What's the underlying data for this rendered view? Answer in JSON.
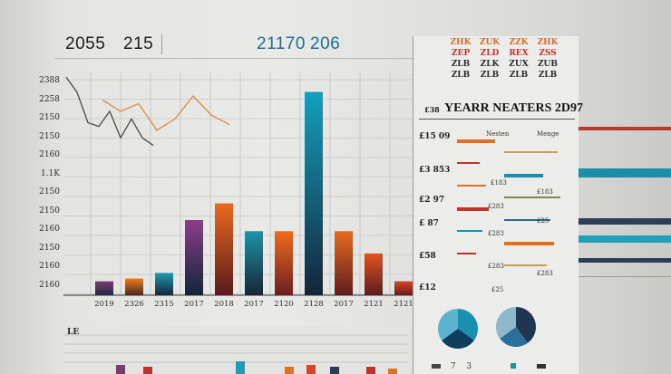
{
  "header": {
    "left_a": "2055",
    "left_b": "215",
    "mid_a": "21170",
    "mid_b": "206"
  },
  "chart_data": {
    "type": "bar",
    "title": "",
    "y_tick_labels": [
      "2388",
      "2258",
      "2150",
      "2150",
      "2160",
      "1.1K",
      "2150",
      "2150",
      "2160",
      "2150",
      "2160",
      "2160"
    ],
    "categories": [
      "2019",
      "2326",
      "2315",
      "2017",
      "2018",
      "2017",
      "2120",
      "2128",
      "2017",
      "2121",
      "2121"
    ],
    "values": [
      5,
      6,
      8,
      27,
      33,
      23,
      23,
      73,
      23,
      15,
      5
    ],
    "bar_colors": [
      [
        "#7a3b72",
        "#1e2b3d"
      ],
      [
        "#f07a1a",
        "#4a2a20"
      ],
      [
        "#1f9bb5",
        "#17263a"
      ],
      [
        "#8a3f8a",
        "#13243a"
      ],
      [
        "#ea6a1e",
        "#5a1a1a"
      ],
      [
        "#1d93a6",
        "#172537"
      ],
      [
        "#f06b1c",
        "#6a1f1f"
      ],
      [
        "#13a0bd",
        "#15253a"
      ],
      [
        "#e66a20",
        "#5e1c1c"
      ],
      [
        "#e2521f",
        "#5a1e1e"
      ],
      [
        "#d4452a",
        "#6a1c1c"
      ]
    ],
    "ylim": [
      0,
      80
    ],
    "line_series": [
      {
        "name": "dark",
        "color": "#4a4a4a",
        "values": [
          96,
          88,
          72,
          70,
          78,
          64,
          74,
          64,
          60
        ]
      },
      {
        "name": "orange",
        "color": "#e0893a",
        "values": [
          84,
          78,
          82,
          68,
          74,
          86,
          76,
          71
        ]
      }
    ]
  },
  "panel": {
    "title": "YEARR NEATERS 2D97",
    "mini_headers": [
      "ZHK",
      "ZUK",
      "ZZK",
      "ZHK"
    ],
    "mini_row2": [
      "ZEP",
      "ZLD",
      "REX",
      "ZSS"
    ],
    "mini_row3": [
      "ZLB",
      "ZLK",
      "ZUX",
      "ZUB"
    ],
    "mini_row4": [
      "ZLB",
      "ZLB",
      "ZLB",
      "ZLB"
    ],
    "left_label_top": "£38",
    "row_labels": [
      "£15 09",
      "£3 853",
      "£2 97",
      "£ 87",
      "£58",
      "£12"
    ],
    "small_labels": [
      "Nesten",
      "Menge",
      "£183",
      "£183",
      "£283",
      "£25",
      "£283",
      "£283",
      "£283",
      "£25"
    ],
    "bar_rows": [
      {
        "label": "",
        "color": "#e07020",
        "value": 0.6
      },
      {
        "label": "",
        "color": "#c8a04c",
        "value": 0.75
      },
      {
        "label": "",
        "color": "#c0332a",
        "value": 0.35
      },
      {
        "label": "",
        "color": "#1b8fa8",
        "value": 0.55
      },
      {
        "label": "",
        "color": "#e07020",
        "value": 0.45
      },
      {
        "label": "",
        "color": "#7a8a4a",
        "value": 0.8
      },
      {
        "label": "",
        "color": "#c0332a",
        "value": 0.5
      },
      {
        "label": "",
        "color": "#2a6a8a",
        "value": 0.65
      },
      {
        "label": "",
        "color": "#1b8fa8",
        "value": 0.4
      },
      {
        "label": "",
        "color": "#e07020",
        "value": 0.7
      },
      {
        "label": "",
        "color": "#c0332a",
        "value": 0.3
      },
      {
        "label": "",
        "color": "#c8a04c",
        "value": 0.6
      }
    ],
    "pie": [
      {
        "name": "pie-a",
        "slices": [
          0.35,
          0.3,
          0.35
        ],
        "colors": [
          "#1b8fb0",
          "#0f3d5e",
          "#5ab4d0"
        ]
      },
      {
        "name": "pie-b",
        "slices": [
          0.4,
          0.25,
          0.35
        ],
        "colors": [
          "#1f3550",
          "#2b6f9a",
          "#8fb8cc"
        ]
      }
    ],
    "footer": [
      "7",
      "3"
    ]
  },
  "bottom": {
    "label": "LE"
  }
}
